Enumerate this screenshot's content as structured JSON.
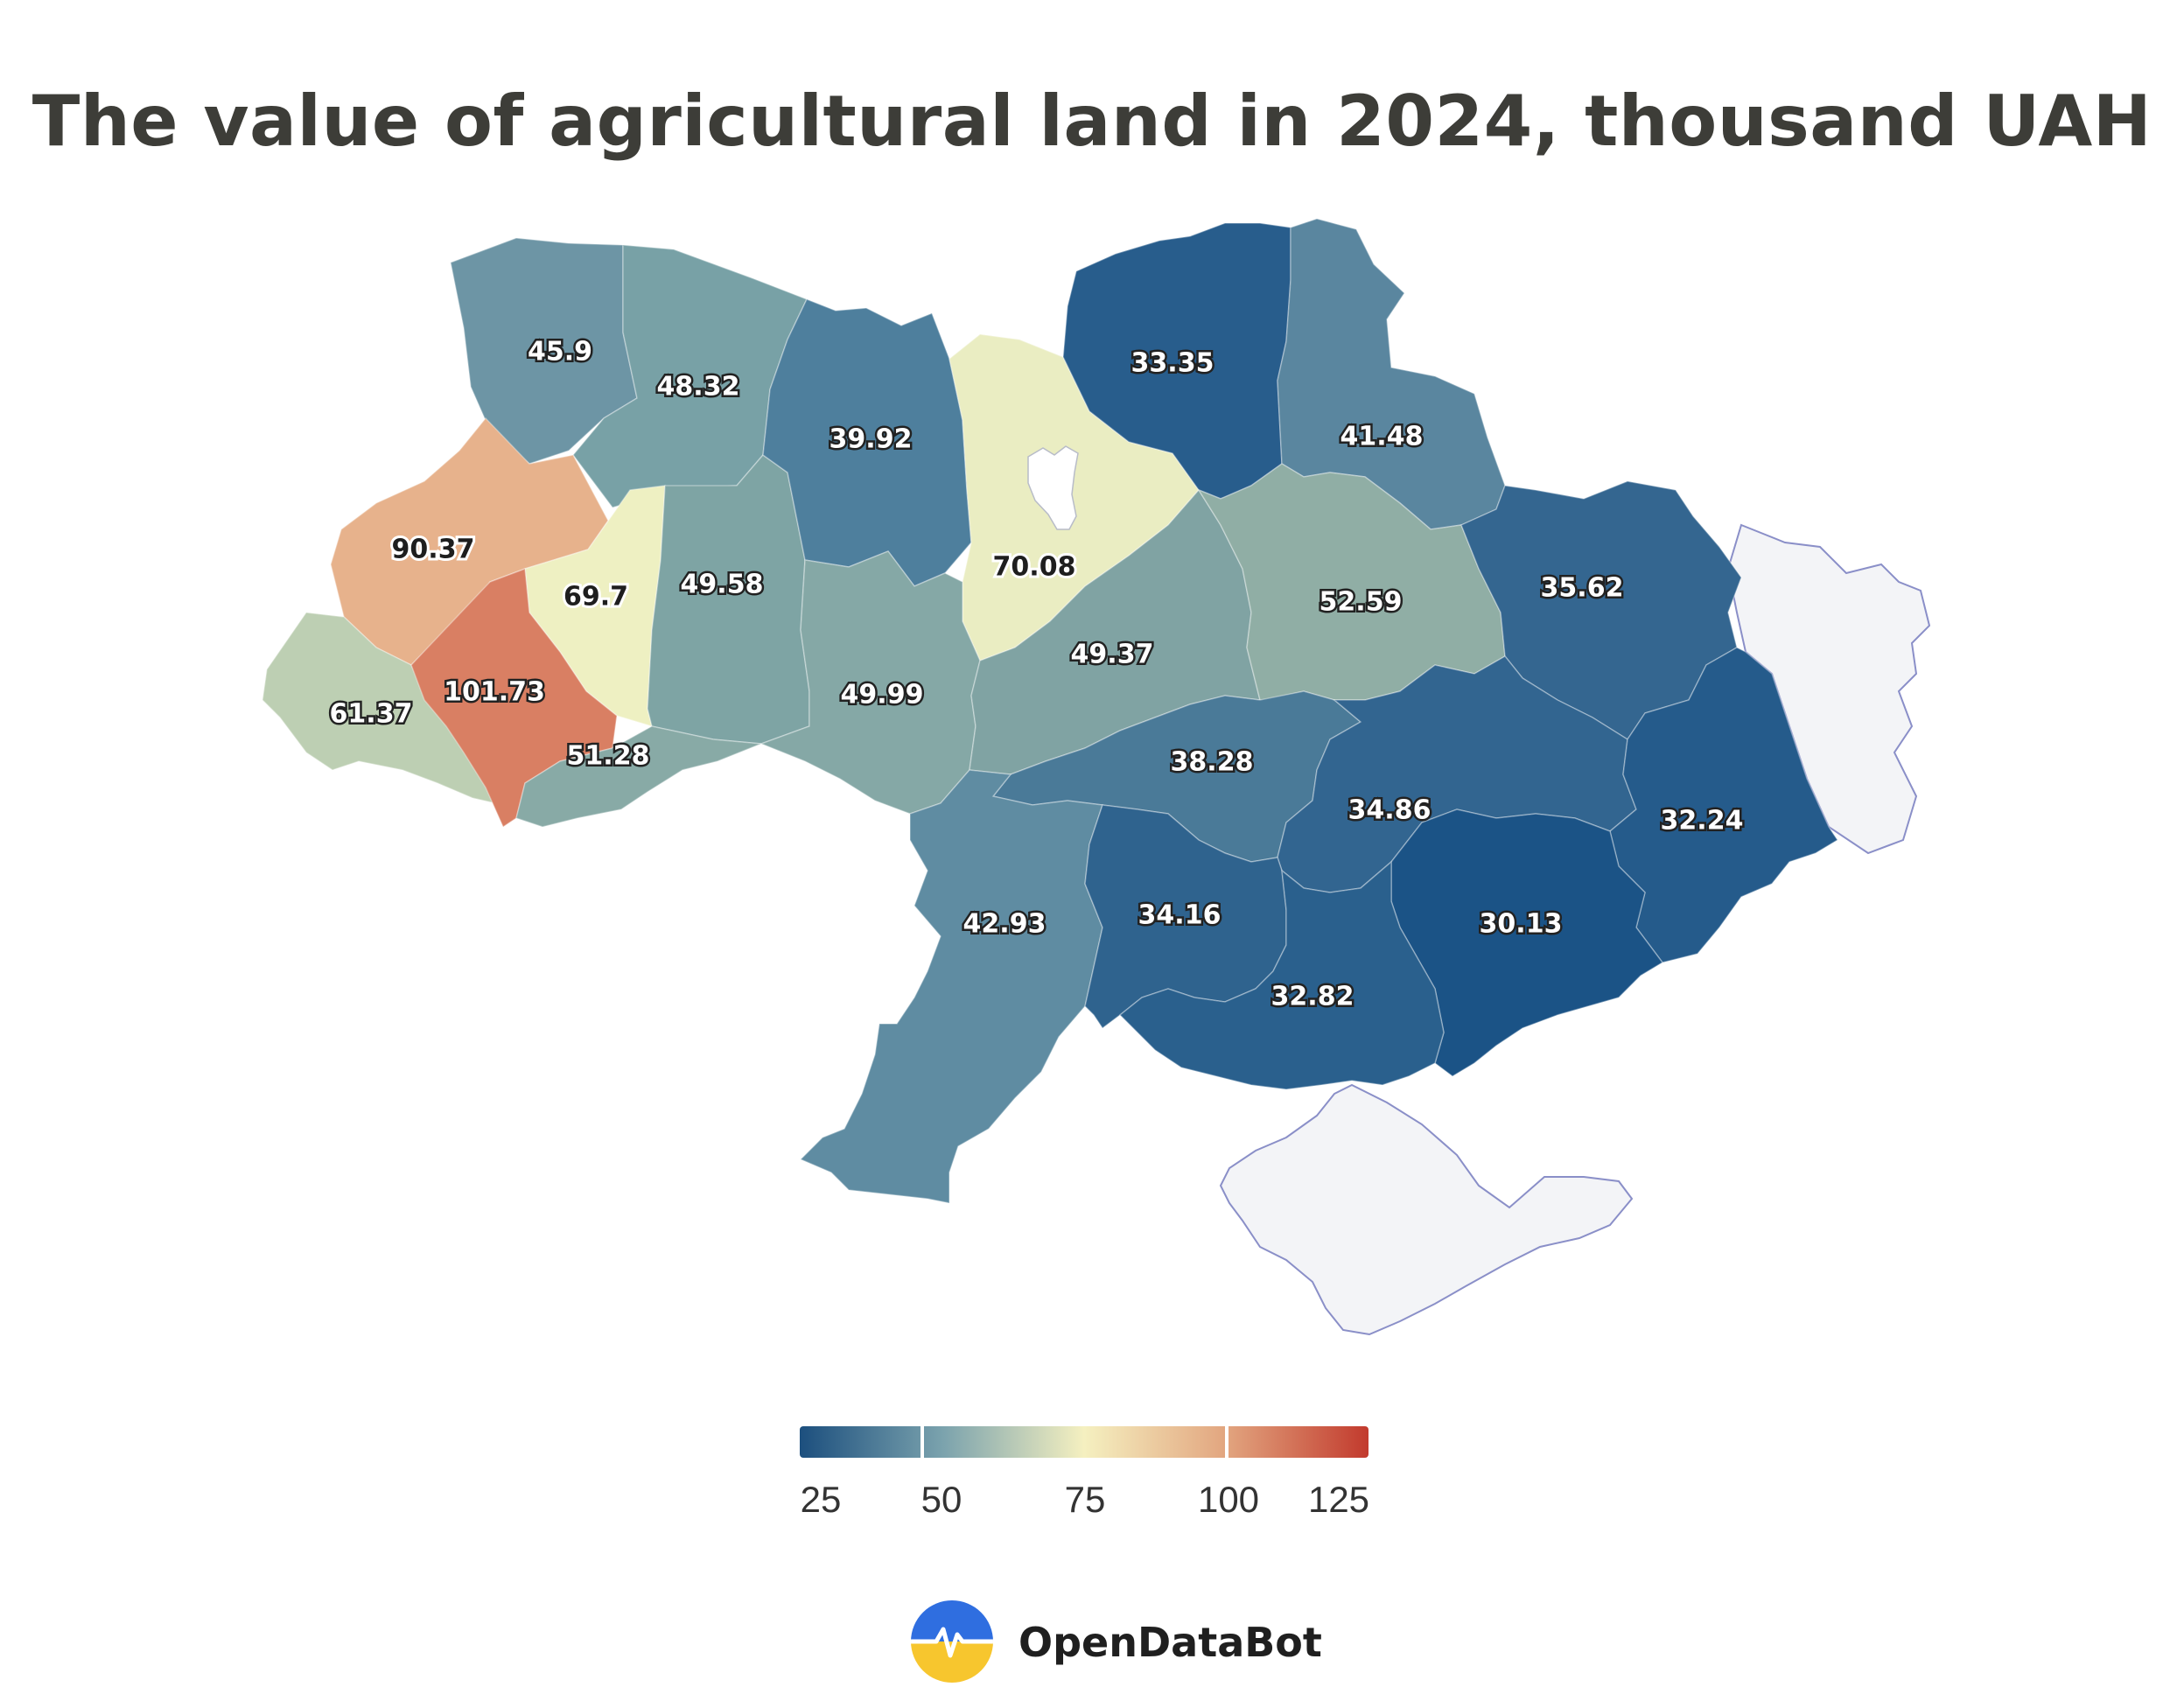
{
  "title": "The value of agricultural land in 2024, thousand UAH",
  "map": {
    "regions": [
      {
        "key": "volyn",
        "value": "45.9",
        "color": "#6d95a5",
        "text": "dark"
      },
      {
        "key": "rivne",
        "value": "48.32",
        "color": "#78a1a6",
        "text": "dark"
      },
      {
        "key": "lviv",
        "value": "90.37",
        "color": "#e7b28c",
        "text": "light"
      },
      {
        "key": "ternopil",
        "value": "69.7",
        "color": "#eef0c2",
        "text": "light"
      },
      {
        "key": "khmelnytskyi",
        "value": "49.58",
        "color": "#7ea4a4",
        "text": "dark"
      },
      {
        "key": "zakarpattia",
        "value": "61.37",
        "color": "#bdcfb3",
        "text": "dark"
      },
      {
        "key": "ivano-frankivsk",
        "value": "101.73",
        "color": "#d97f63",
        "text": "dark"
      },
      {
        "key": "chernivtsi",
        "value": "51.28",
        "color": "#88aaa6",
        "text": "dark"
      },
      {
        "key": "zhytomyr",
        "value": "39.92",
        "color": "#4e7f9d",
        "text": "dark"
      },
      {
        "key": "kyiv",
        "value": "70.08",
        "color": "#eaedc2",
        "text": "light"
      },
      {
        "key": "vinnytsia",
        "value": "49.99",
        "color": "#85a8a6",
        "text": "dark"
      },
      {
        "key": "cherkasy",
        "value": "49.37",
        "color": "#80a3a3",
        "text": "dark"
      },
      {
        "key": "chernihiv",
        "value": "33.35",
        "color": "#285d8c",
        "text": "dark"
      },
      {
        "key": "sumy",
        "value": "41.48",
        "color": "#5a869f",
        "text": "dark"
      },
      {
        "key": "poltava",
        "value": "52.59",
        "color": "#90aea5",
        "text": "dark"
      },
      {
        "key": "kharkiv",
        "value": "35.62",
        "color": "#346690",
        "text": "dark"
      },
      {
        "key": "kirovohrad",
        "value": "38.28",
        "color": "#4a7a98",
        "text": "dark"
      },
      {
        "key": "dnipropetrovsk",
        "value": "34.86",
        "color": "#326590",
        "text": "dark"
      },
      {
        "key": "donetsk",
        "value": "32.24",
        "color": "#255b8b",
        "text": "dark"
      },
      {
        "key": "odesa",
        "value": "42.93",
        "color": "#5f8ca2",
        "text": "dark"
      },
      {
        "key": "mykolaiv",
        "value": "34.16",
        "color": "#2f638e",
        "text": "dark"
      },
      {
        "key": "zaporizhzhia",
        "value": "30.13",
        "color": "#1b5386",
        "text": "dark"
      },
      {
        "key": "kherson",
        "value": "32.82",
        "color": "#2a608d",
        "text": "dark"
      }
    ],
    "no_data_color": "#f3f4f7"
  },
  "legend": {
    "ticks": [
      "25",
      "50",
      "75",
      "100",
      "125"
    ],
    "min": 25,
    "max": 125,
    "gradient": [
      "#1c4f7e",
      "#7aa2ad",
      "#f5f0c0",
      "#e2a57f",
      "#c23a2d"
    ]
  },
  "brand": {
    "name": "OpenDataBot",
    "logo_colors": [
      "#2f6ee0",
      "#f7c62e"
    ]
  }
}
